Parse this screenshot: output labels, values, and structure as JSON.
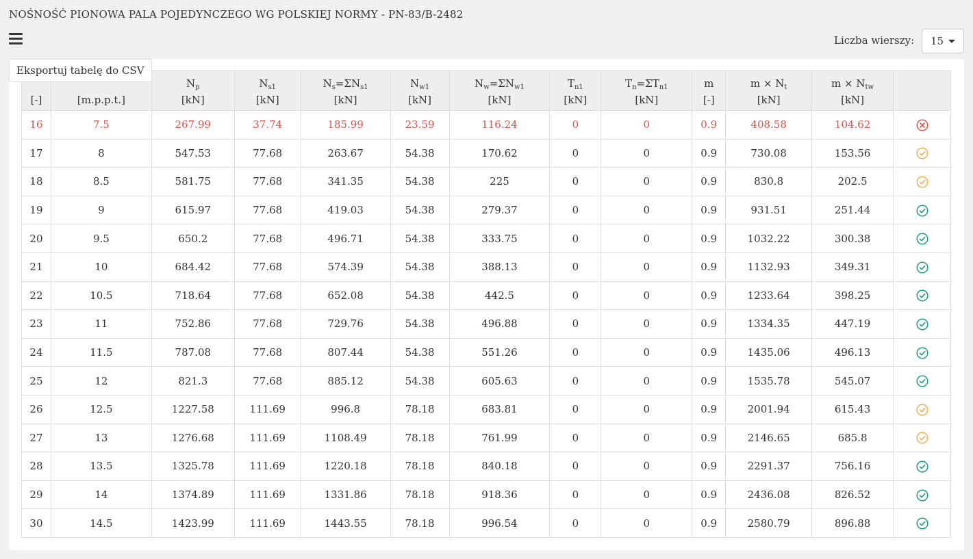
{
  "title": "NOŚNOŚĆ PIONOWA PALA POJEDYNCZEGO WG POLSKIEJ NORMY - PN-83/B-2482",
  "export_label": "Eksportuj tabelę do CSV",
  "rows_label": "Liczba wierszy:",
  "rows_value": "15",
  "colors": {
    "bad": "#d9534f",
    "warn": "#f0ad4e",
    "ok": "#1a9f6f"
  },
  "headers": [
    {
      "sym": "",
      "sub": "",
      "rest": "",
      "unit": "[-]"
    },
    {
      "sym": "",
      "sub": "",
      "rest": "",
      "unit": "[m.p.p.t.]"
    },
    {
      "sym": "N",
      "sub": "p",
      "rest": "",
      "unit": "[kN]"
    },
    {
      "sym": "N",
      "sub": "s1",
      "rest": "",
      "unit": "[kN]"
    },
    {
      "sym": "N",
      "sub": "s",
      "rest": "=ΣN",
      "sub2": "s1",
      "unit": "[kN]"
    },
    {
      "sym": "N",
      "sub": "w1",
      "rest": "",
      "unit": "[kN]"
    },
    {
      "sym": "N",
      "sub": "w",
      "rest": "=ΣN",
      "sub2": "w1",
      "unit": "[kN]"
    },
    {
      "sym": "T",
      "sub": "n1",
      "rest": "",
      "unit": "[kN]"
    },
    {
      "sym": "T",
      "sub": "n",
      "rest": "=ΣT",
      "sub2": "n1",
      "unit": "[kN]"
    },
    {
      "sym": "m",
      "sub": "",
      "rest": "",
      "unit": "[-]"
    },
    {
      "sym": "m × N",
      "sub": "t",
      "rest": "",
      "unit": "[kN]"
    },
    {
      "sym": "m × N",
      "sub": "tw",
      "rest": "",
      "unit": "[kN]"
    },
    {
      "sym": "",
      "sub": "",
      "rest": "",
      "unit": ""
    }
  ],
  "rows": [
    {
      "cells": [
        "16",
        "7.5",
        "267.99",
        "37.74",
        "185.99",
        "23.59",
        "116.24",
        "0",
        "0",
        "0.9",
        "408.58",
        "104.62"
      ],
      "status": "bad"
    },
    {
      "cells": [
        "17",
        "8",
        "547.53",
        "77.68",
        "263.67",
        "54.38",
        "170.62",
        "0",
        "0",
        "0.9",
        "730.08",
        "153.56"
      ],
      "status": "warn"
    },
    {
      "cells": [
        "18",
        "8.5",
        "581.75",
        "77.68",
        "341.35",
        "54.38",
        "225",
        "0",
        "0",
        "0.9",
        "830.8",
        "202.5"
      ],
      "status": "warn"
    },
    {
      "cells": [
        "19",
        "9",
        "615.97",
        "77.68",
        "419.03",
        "54.38",
        "279.37",
        "0",
        "0",
        "0.9",
        "931.51",
        "251.44"
      ],
      "status": "ok"
    },
    {
      "cells": [
        "20",
        "9.5",
        "650.2",
        "77.68",
        "496.71",
        "54.38",
        "333.75",
        "0",
        "0",
        "0.9",
        "1032.22",
        "300.38"
      ],
      "status": "ok"
    },
    {
      "cells": [
        "21",
        "10",
        "684.42",
        "77.68",
        "574.39",
        "54.38",
        "388.13",
        "0",
        "0",
        "0.9",
        "1132.93",
        "349.31"
      ],
      "status": "ok"
    },
    {
      "cells": [
        "22",
        "10.5",
        "718.64",
        "77.68",
        "652.08",
        "54.38",
        "442.5",
        "0",
        "0",
        "0.9",
        "1233.64",
        "398.25"
      ],
      "status": "ok"
    },
    {
      "cells": [
        "23",
        "11",
        "752.86",
        "77.68",
        "729.76",
        "54.38",
        "496.88",
        "0",
        "0",
        "0.9",
        "1334.35",
        "447.19"
      ],
      "status": "ok"
    },
    {
      "cells": [
        "24",
        "11.5",
        "787.08",
        "77.68",
        "807.44",
        "54.38",
        "551.26",
        "0",
        "0",
        "0.9",
        "1435.06",
        "496.13"
      ],
      "status": "ok"
    },
    {
      "cells": [
        "25",
        "12",
        "821.3",
        "77.68",
        "885.12",
        "54.38",
        "605.63",
        "0",
        "0",
        "0.9",
        "1535.78",
        "545.07"
      ],
      "status": "ok"
    },
    {
      "cells": [
        "26",
        "12.5",
        "1227.58",
        "111.69",
        "996.8",
        "78.18",
        "683.81",
        "0",
        "0",
        "0.9",
        "2001.94",
        "615.43"
      ],
      "status": "warn"
    },
    {
      "cells": [
        "27",
        "13",
        "1276.68",
        "111.69",
        "1108.49",
        "78.18",
        "761.99",
        "0",
        "0",
        "0.9",
        "2146.65",
        "685.8"
      ],
      "status": "warn"
    },
    {
      "cells": [
        "28",
        "13.5",
        "1325.78",
        "111.69",
        "1220.18",
        "78.18",
        "840.18",
        "0",
        "0",
        "0.9",
        "2291.37",
        "756.16"
      ],
      "status": "ok"
    },
    {
      "cells": [
        "29",
        "14",
        "1374.89",
        "111.69",
        "1331.86",
        "78.18",
        "918.36",
        "0",
        "0",
        "0.9",
        "2436.08",
        "826.52"
      ],
      "status": "ok"
    },
    {
      "cells": [
        "30",
        "14.5",
        "1423.99",
        "111.69",
        "1443.55",
        "78.18",
        "996.54",
        "0",
        "0",
        "0.9",
        "2580.79",
        "896.88"
      ],
      "status": "ok"
    }
  ]
}
